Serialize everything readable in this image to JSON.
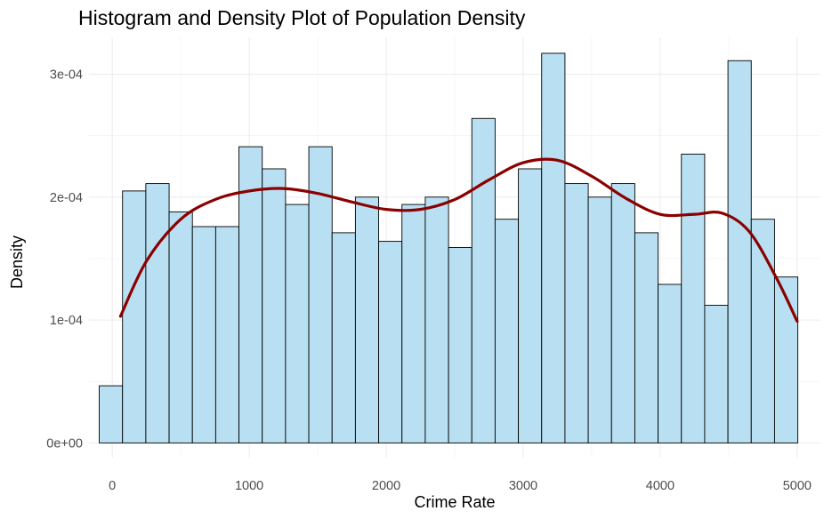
{
  "chart_data": {
    "type": "histogram",
    "title": "Histogram and Density Plot of Population Density",
    "xlabel": "Crime Rate",
    "ylabel": "Density",
    "xlim": [
      -170,
      5170
    ],
    "ylim": [
      -1.2e-05,
      0.00033
    ],
    "x_ticks": [
      0,
      1000,
      2000,
      3000,
      4000,
      5000
    ],
    "x_tick_labels": [
      "0",
      "1000",
      "2000",
      "3000",
      "4000",
      "5000"
    ],
    "y_ticks": [
      0,
      0.0001,
      0.0002,
      0.0003
    ],
    "y_tick_labels": [
      "0e+00",
      "1e-04",
      "2e-04",
      "3e-04"
    ],
    "grid": true,
    "histogram": {
      "bin_width": 170,
      "bin_starts": [
        -95,
        75,
        245,
        415,
        585,
        755,
        925,
        1095,
        1265,
        1435,
        1605,
        1775,
        1945,
        2115,
        2285,
        2455,
        2625,
        2795,
        2965,
        3135,
        3305,
        3475,
        3645,
        3815,
        3985,
        4155,
        4325,
        4495,
        4665,
        4835
      ],
      "values": [
        4.65e-05,
        0.000205,
        0.000211,
        0.000188,
        0.000176,
        0.000176,
        0.000241,
        0.000223,
        0.000194,
        0.000241,
        0.000171,
        0.0002,
        0.000164,
        0.000194,
        0.0002,
        0.000159,
        0.000264,
        0.000182,
        0.000223,
        0.000317,
        0.000211,
        0.0002,
        0.000211,
        0.000171,
        0.000129,
        0.000235,
        0.000112,
        0.000311,
        0.000182,
        0.000135
      ],
      "fill": "#b9e0f2",
      "edge": "#000000"
    },
    "density": {
      "x": [
        60,
        250,
        500,
        750,
        1000,
        1250,
        1500,
        1750,
        2000,
        2250,
        2500,
        2750,
        3000,
        3250,
        3500,
        3750,
        4000,
        4250,
        4450,
        4650,
        4850,
        5000
      ],
      "y": [
        0.000103,
        0.000148,
        0.000182,
        0.000198,
        0.000205,
        0.000207,
        0.000203,
        0.000196,
        0.00019,
        0.00019,
        0.000198,
        0.000214,
        0.000228,
        0.00023,
        0.000217,
        0.000199,
        0.000186,
        0.000186,
        0.000187,
        0.000172,
        0.000134,
        9.9e-05
      ],
      "color": "#8b0000"
    }
  }
}
